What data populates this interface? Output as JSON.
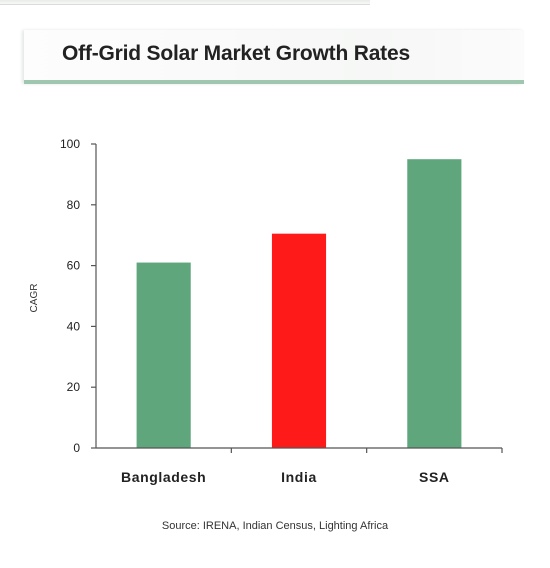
{
  "header": {
    "title": "Off-Grid Solar Market Growth Rates"
  },
  "chart_data": {
    "type": "bar",
    "title": "Off-Grid Solar Market Growth Rates",
    "categories": [
      "Bangladesh",
      "India",
      "SSA"
    ],
    "values": [
      61,
      70.5,
      95
    ],
    "bar_colors": [
      "#5fa67d",
      "#ff1a1a",
      "#5fa67d"
    ],
    "ylabel": "CAGR",
    "xlabel": "",
    "ylim": [
      0,
      100
    ],
    "yticks": [
      0,
      20,
      40,
      60,
      80,
      100
    ],
    "ytick_labels": [
      "0",
      "20",
      "40",
      "60",
      "80",
      "100"
    ],
    "grid": false,
    "legend": "none"
  },
  "footer": {
    "source": "Source: IRENA, Indian Census, Lighting Africa"
  }
}
